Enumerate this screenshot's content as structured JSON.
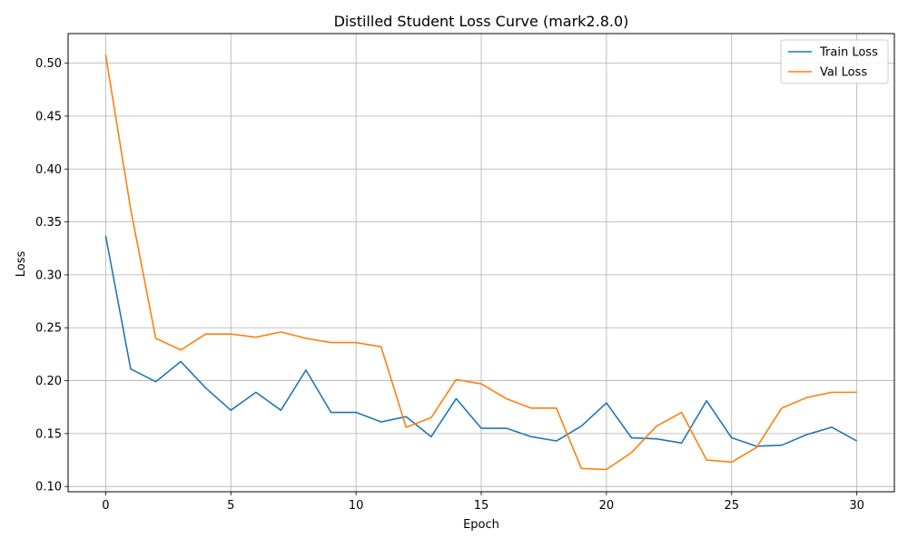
{
  "chart_data": {
    "type": "line",
    "title": "Distilled Student Loss Curve (mark2.8.0)",
    "xlabel": "Epoch",
    "ylabel": "Loss",
    "xlim": [
      -1.5,
      31.5
    ],
    "ylim": [
      0.095,
      0.528
    ],
    "xticks": [
      0,
      5,
      10,
      15,
      20,
      25,
      30
    ],
    "yticks": [
      0.1,
      0.15,
      0.2,
      0.25,
      0.3,
      0.35,
      0.4,
      0.45,
      0.5
    ],
    "grid": true,
    "legend_position": "top-right",
    "x": [
      0,
      1,
      2,
      3,
      4,
      5,
      6,
      7,
      8,
      9,
      10,
      11,
      12,
      13,
      14,
      15,
      16,
      17,
      18,
      19,
      20,
      21,
      22,
      23,
      24,
      25,
      26,
      27,
      28,
      29,
      30
    ],
    "series": [
      {
        "name": "Train Loss",
        "color": "#1f77b4",
        "values": [
          0.337,
          0.211,
          0.199,
          0.218,
          0.193,
          0.172,
          0.189,
          0.172,
          0.21,
          0.17,
          0.17,
          0.161,
          0.166,
          0.147,
          0.183,
          0.155,
          0.155,
          0.147,
          0.143,
          0.157,
          0.179,
          0.146,
          0.145,
          0.141,
          0.181,
          0.146,
          0.138,
          0.139,
          0.149,
          0.156,
          0.143
        ]
      },
      {
        "name": "Val Loss",
        "color": "#ff7f0e",
        "values": [
          0.508,
          0.362,
          0.24,
          0.229,
          0.244,
          0.244,
          0.241,
          0.246,
          0.24,
          0.236,
          0.236,
          0.232,
          0.156,
          0.165,
          0.201,
          0.197,
          0.183,
          0.174,
          0.174,
          0.117,
          0.116,
          0.132,
          0.157,
          0.17,
          0.125,
          0.123,
          0.137,
          0.174,
          0.184,
          0.189,
          0.189
        ]
      }
    ]
  }
}
